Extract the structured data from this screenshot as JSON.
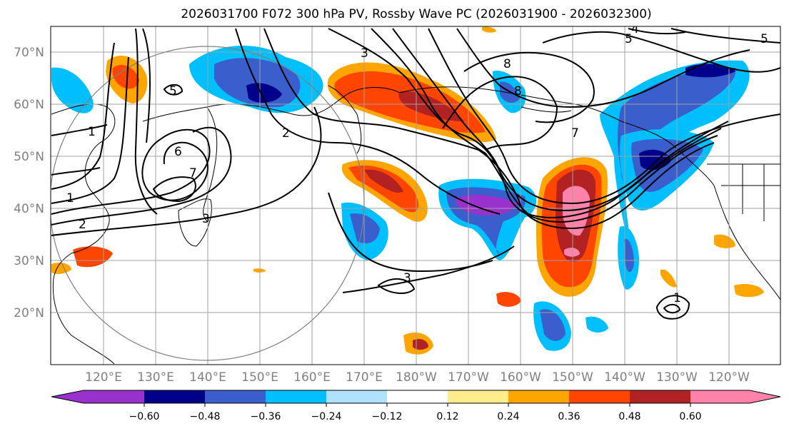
{
  "title": "2026031700 F072 300 hPa PV, Rossby Wave PC (2026031900 - 2026032300)",
  "map": {
    "lat_labels": [
      "70°N",
      "60°N",
      "50°N",
      "40°N",
      "30°N",
      "20°N"
    ],
    "lon_labels": [
      "120°E",
      "130°E",
      "140°E",
      "150°E",
      "160°E",
      "170°E",
      "180°W",
      "170°W",
      "160°W",
      "150°W",
      "140°W",
      "130°W",
      "120°W"
    ],
    "contour_labels": [
      "1",
      "2",
      "3",
      "4",
      "5",
      "6",
      "7",
      "8"
    ]
  },
  "colorbar": {
    "colors": [
      "#9932cc",
      "#00008b",
      "#3a5fcd",
      "#00bfff",
      "#b0e2ff",
      "#ffffff",
      "#ffec8b",
      "#ffa500",
      "#ff4500",
      "#b22222",
      "#ff82ab"
    ],
    "tick_labels": [
      "−0.60",
      "−0.48",
      "−0.36",
      "−0.24",
      "−0.12",
      "0.12",
      "0.24",
      "0.36",
      "0.48",
      "0.60"
    ]
  }
}
